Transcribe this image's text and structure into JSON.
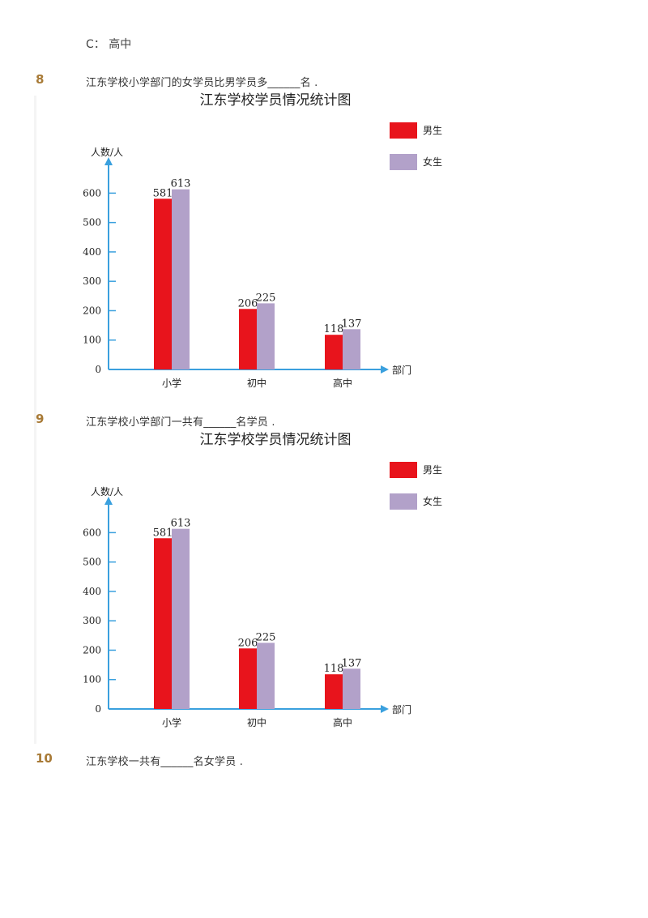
{
  "option_c": "C： 高中",
  "questions": [
    {
      "number": "8",
      "text": "江东学校小学部门的女学员比男学员多______名 ."
    },
    {
      "number": "9",
      "text": "江东学校小学部门一共有______名学员 ."
    },
    {
      "number": "10",
      "text": "江东学校一共有______名女学员 ."
    }
  ],
  "colors": {
    "male": "#e8141c",
    "female": "#b2a1c9",
    "axis": "#3aa0de",
    "number": "#a87a36"
  },
  "chart_data": [
    {
      "type": "bar",
      "title": "江东学校学员情况统计图",
      "xlabel": "部门",
      "ylabel": "人数/人",
      "categories": [
        "小学",
        "初中",
        "高中"
      ],
      "series": [
        {
          "name": "男生",
          "values": [
            581,
            206,
            118
          ]
        },
        {
          "name": "女生",
          "values": [
            613,
            225,
            137
          ]
        }
      ],
      "yticks": [
        0,
        100,
        200,
        300,
        400,
        500,
        600
      ],
      "ylim": [
        0,
        700
      ],
      "legend": "top-right",
      "grid": false
    },
    {
      "type": "bar",
      "title": "江东学校学员情况统计图",
      "xlabel": "部门",
      "ylabel": "人数/人",
      "categories": [
        "小学",
        "初中",
        "高中"
      ],
      "series": [
        {
          "name": "男生",
          "values": [
            581,
            206,
            118
          ]
        },
        {
          "name": "女生",
          "values": [
            613,
            225,
            137
          ]
        }
      ],
      "yticks": [
        0,
        100,
        200,
        300,
        400,
        500,
        600
      ],
      "ylim": [
        0,
        700
      ],
      "legend": "top-right",
      "grid": false
    }
  ]
}
